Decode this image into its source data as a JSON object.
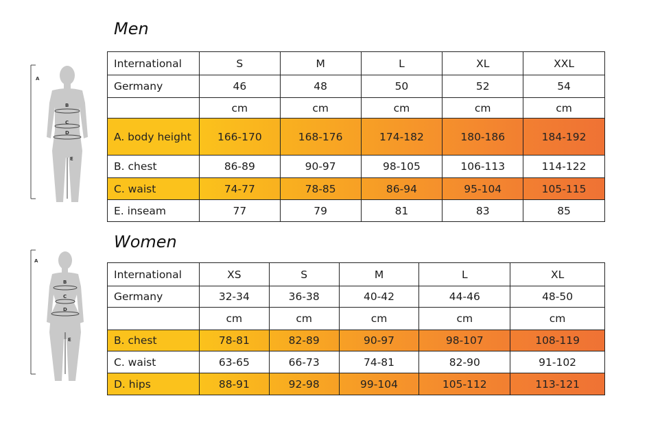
{
  "men": {
    "title": "Men",
    "rows": [
      {
        "label": "International",
        "cells": [
          "S",
          "M",
          "L",
          "XL",
          "XXL"
        ],
        "highlight": false
      },
      {
        "label": "Germany",
        "cells": [
          "46",
          "48",
          "50",
          "52",
          "54"
        ],
        "highlight": false
      },
      {
        "label": "",
        "cells": [
          "cm",
          "cm",
          "cm",
          "cm",
          "cm"
        ],
        "highlight": false
      },
      {
        "label": "A. body height",
        "cells": [
          "166-170",
          "168-176",
          "174-182",
          "180-186",
          "184-192"
        ],
        "highlight": true
      },
      {
        "label": "B. chest",
        "cells": [
          "86-89",
          "90-97",
          "98-105",
          "106-113",
          "114-122"
        ],
        "highlight": false
      },
      {
        "label": "C. waist",
        "cells": [
          "74-77",
          "78-85",
          "86-94",
          "95-104",
          "105-115"
        ],
        "highlight": true
      },
      {
        "label": "E. inseam",
        "cells": [
          "77",
          "79",
          "81",
          "83",
          "85"
        ],
        "highlight": false
      }
    ],
    "figure_labels": [
      "A",
      "B",
      "C",
      "D",
      "E"
    ]
  },
  "women": {
    "title": "Women",
    "rows": [
      {
        "label": "International",
        "cells": [
          "XS",
          "S",
          "M",
          "L",
          "XL"
        ],
        "highlight": false
      },
      {
        "label": "Germany",
        "cells": [
          "32-34",
          "36-38",
          "40-42",
          "44-46",
          "48-50"
        ],
        "highlight": false
      },
      {
        "label": "",
        "cells": [
          "cm",
          "cm",
          "cm",
          "cm",
          "cm"
        ],
        "highlight": false
      },
      {
        "label": "B. chest",
        "cells": [
          "78-81",
          "82-89",
          "90-97",
          "98-107",
          "108-119"
        ],
        "highlight": true
      },
      {
        "label": "C. waist",
        "cells": [
          "63-65",
          "66-73",
          "74-81",
          "82-90",
          "91-102"
        ],
        "highlight": false
      },
      {
        "label": "D. hips",
        "cells": [
          "88-91",
          "92-98",
          "99-104",
          "105-112",
          "113-121"
        ],
        "highlight": true
      }
    ],
    "figure_labels": [
      "A",
      "B",
      "C",
      "D",
      "E"
    ]
  },
  "colors": {
    "gradient": [
      "#fbc21c",
      "#f9b11f",
      "#f7a025",
      "#f5902c",
      "#f27f31",
      "#ef7234"
    ]
  }
}
